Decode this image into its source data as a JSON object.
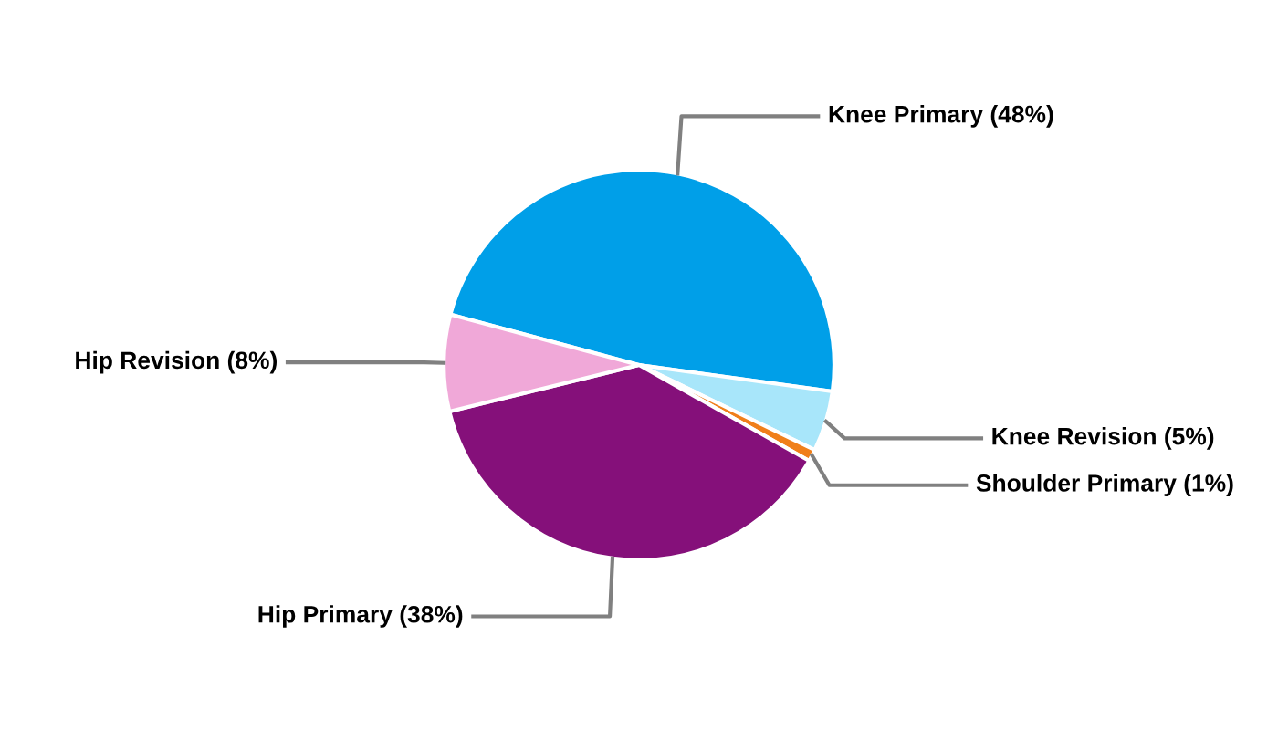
{
  "chart_data": {
    "type": "pie",
    "categories": [
      "Knee Primary (48%)",
      "Knee Revision (5%)",
      "Shoulder Primary (1%)",
      "Hip Primary (38%)",
      "Hip Revision (8%)"
    ],
    "values": [
      48,
      5,
      1,
      38,
      8
    ],
    "colors": [
      "#009fe8",
      "#a8e6fa",
      "#f07f1a",
      "#85107a",
      "#f0a8d8"
    ]
  }
}
